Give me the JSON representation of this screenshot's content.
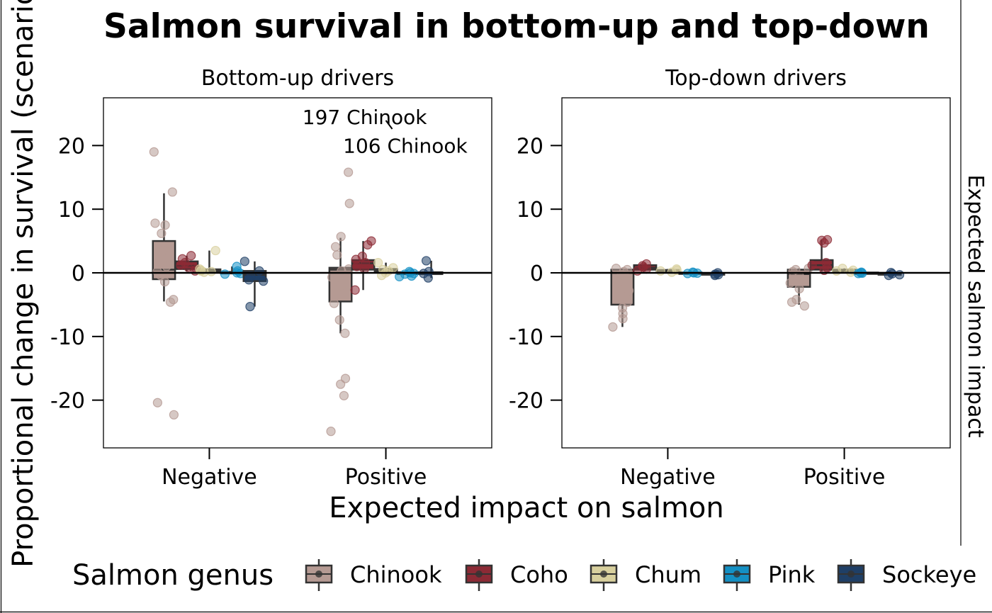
{
  "chart_data": {
    "type": "boxplot",
    "title": "Salmon survival in bottom-up and top-down",
    "ylabel": "Proportional change in survival (scenario/",
    "xlabel": "Expected impact on salmon",
    "right_label": "Expected salmon impact",
    "ylim": [
      -27.5,
      27.5
    ],
    "yticks": [
      -20,
      -10,
      0,
      10,
      20
    ],
    "ytick_labels": [
      "-20",
      "-10",
      "0",
      "10",
      "20"
    ],
    "categories": [
      "Negative",
      "Positive"
    ],
    "legend": {
      "title": "Salmon genus",
      "position": "bottom",
      "items": [
        {
          "name": "Chinook",
          "color": "#B59A93"
        },
        {
          "name": "Coho",
          "color": "#8C2A35"
        },
        {
          "name": "Chum",
          "color": "#D8D09E"
        },
        {
          "name": "Pink",
          "color": "#1490C4"
        },
        {
          "name": "Sockeye",
          "color": "#1F3F66"
        }
      ]
    },
    "panels": [
      {
        "strip": "Bottom-up drivers",
        "annotations": [
          {
            "text": "197 Chinook",
            "category": "Negative",
            "offset": 0.4,
            "y": 24.5
          },
          {
            "text": "106 Chinook",
            "category": "Positive",
            "offset": 0.05,
            "y": 20.0
          }
        ],
        "groups": [
          {
            "category": "Negative",
            "genus": "Chinook",
            "box": [
              -1,
              0.5,
              5
            ],
            "whisker": [
              -4.5,
              12.5
            ],
            "points": [
              19,
              12.7,
              7.8,
              7.5,
              6.2,
              3.5,
              1.0,
              0.2,
              -0.4,
              -1.4,
              -4.2,
              -4.6,
              -20.4,
              -22.3
            ]
          },
          {
            "category": "Negative",
            "genus": "Coho",
            "box": [
              0.6,
              1.1,
              1.8
            ],
            "whisker": [
              0.2,
              2.7
            ],
            "points": [
              2.7,
              2.2,
              1.6,
              1.2,
              0.9,
              0.6,
              0.3
            ]
          },
          {
            "category": "Negative",
            "genus": "Chum",
            "box": [
              0.15,
              0.35,
              0.55
            ],
            "whisker": [
              0.1,
              3.5
            ],
            "points": [
              3.5,
              0.6,
              0.4,
              0.3,
              0.2,
              0.1
            ]
          },
          {
            "category": "Negative",
            "genus": "Pink",
            "box": [
              -0.1,
              0.0,
              0.15
            ],
            "whisker": [
              -0.2,
              1.0
            ],
            "points": [
              1.0,
              0.3,
              0.0,
              -0.1,
              -0.2
            ]
          },
          {
            "category": "Negative",
            "genus": "Sockeye",
            "box": [
              -1.3,
              -0.3,
              0.3
            ],
            "whisker": [
              -5.3,
              1.8
            ],
            "points": [
              1.8,
              0.3,
              -0.5,
              -1.1,
              -1.3,
              -5.3
            ]
          },
          {
            "category": "Positive",
            "genus": "Chinook",
            "box": [
              -4.5,
              0.5,
              0.8
            ],
            "whisker": [
              -9.5,
              5.5
            ],
            "points": [
              15.8,
              10.9,
              5.7,
              4.1,
              2.8,
              0.6,
              0.3,
              -0.7,
              -2.0,
              -4.8,
              -7.4,
              -9.5,
              -16.6,
              -17.5,
              -19.3,
              -24.9
            ]
          },
          {
            "category": "Positive",
            "genus": "Coho",
            "box": [
              0.5,
              1.5,
              2.0
            ],
            "whisker": [
              -2.7,
              5.0
            ],
            "points": [
              5.0,
              4.4,
              2.6,
              2.1,
              1.6,
              1.0,
              0.6,
              -2.7
            ]
          },
          {
            "category": "Positive",
            "genus": "Chum",
            "box": [
              0.2,
              0.4,
              0.6
            ],
            "whisker": [
              -0.4,
              1.6
            ],
            "points": [
              1.6,
              0.8,
              0.5,
              0.3,
              0.0,
              -0.4
            ]
          },
          {
            "category": "Positive",
            "genus": "Pink",
            "box": [
              -0.2,
              0.0,
              0.1
            ],
            "whisker": [
              -0.6,
              0.2
            ],
            "points": [
              0.2,
              0.0,
              -0.1,
              -0.2,
              -0.5,
              -0.6
            ]
          },
          {
            "category": "Positive",
            "genus": "Sockeye",
            "box": [
              -0.2,
              0.0,
              0.1
            ],
            "whisker": [
              -0.8,
              1.9
            ],
            "points": [
              1.9,
              0.2,
              -0.1,
              -0.8
            ]
          }
        ]
      },
      {
        "strip": "Top-down drivers",
        "annotations": [],
        "groups": [
          {
            "category": "Negative",
            "genus": "Chinook",
            "box": [
              -5,
              0.0,
              0.5
            ],
            "whisker": [
              -8.5,
              0.7
            ],
            "points": [
              0.7,
              0.5,
              0.2,
              -0.3,
              -1.5,
              -2.8,
              -4.6,
              -5.5,
              -6.4,
              -7.2,
              -8.5
            ]
          },
          {
            "category": "Negative",
            "genus": "Coho",
            "box": [
              0.5,
              0.8,
              1.2
            ],
            "whisker": [
              0.3,
              1.4
            ],
            "points": [
              1.4,
              1.1,
              0.9,
              0.6,
              0.3
            ]
          },
          {
            "category": "Negative",
            "genus": "Chum",
            "box": [
              0.15,
              0.3,
              0.45
            ],
            "whisker": [
              0.05,
              0.6
            ],
            "points": [
              0.6,
              0.4,
              0.3,
              0.1
            ]
          },
          {
            "category": "Negative",
            "genus": "Pink",
            "box": [
              -0.05,
              0.0,
              0.05
            ],
            "whisker": [
              -0.1,
              0.1
            ],
            "points": [
              0.1,
              0.0,
              -0.05,
              -0.1
            ]
          },
          {
            "category": "Negative",
            "genus": "Sockeye",
            "box": [
              -0.3,
              -0.2,
              -0.05
            ],
            "whisker": [
              -0.4,
              0.0
            ],
            "points": [
              0.0,
              -0.2,
              -0.3,
              -0.4
            ]
          },
          {
            "category": "Positive",
            "genus": "Chinook",
            "box": [
              -2.2,
              -0.2,
              0.5
            ],
            "whisker": [
              -5.0,
              0.7
            ],
            "points": [
              0.7,
              0.5,
              0.2,
              -0.5,
              -1.6,
              -2.5,
              -4.2,
              -4.6,
              -5.2
            ]
          },
          {
            "category": "Positive",
            "genus": "Coho",
            "box": [
              0.5,
              1.2,
              2.0
            ],
            "whisker": [
              0.2,
              5.2
            ],
            "points": [
              5.2,
              5.1,
              4.7,
              1.6,
              1.2,
              0.8,
              0.4
            ]
          },
          {
            "category": "Positive",
            "genus": "Chum",
            "box": [
              0.2,
              0.35,
              0.5
            ],
            "whisker": [
              0.1,
              0.7
            ],
            "points": [
              0.7,
              0.4,
              0.3,
              0.1
            ]
          },
          {
            "category": "Positive",
            "genus": "Pink",
            "box": [
              -0.05,
              0.0,
              0.05
            ],
            "whisker": [
              -0.1,
              0.1
            ],
            "points": [
              0.1,
              0.0,
              -0.05,
              -0.1
            ]
          },
          {
            "category": "Positive",
            "genus": "Sockeye",
            "box": [
              -0.3,
              -0.15,
              0.0
            ],
            "whisker": [
              -0.4,
              0.05
            ],
            "points": [
              0.05,
              -0.15,
              -0.3,
              -0.4
            ]
          }
        ]
      }
    ]
  }
}
